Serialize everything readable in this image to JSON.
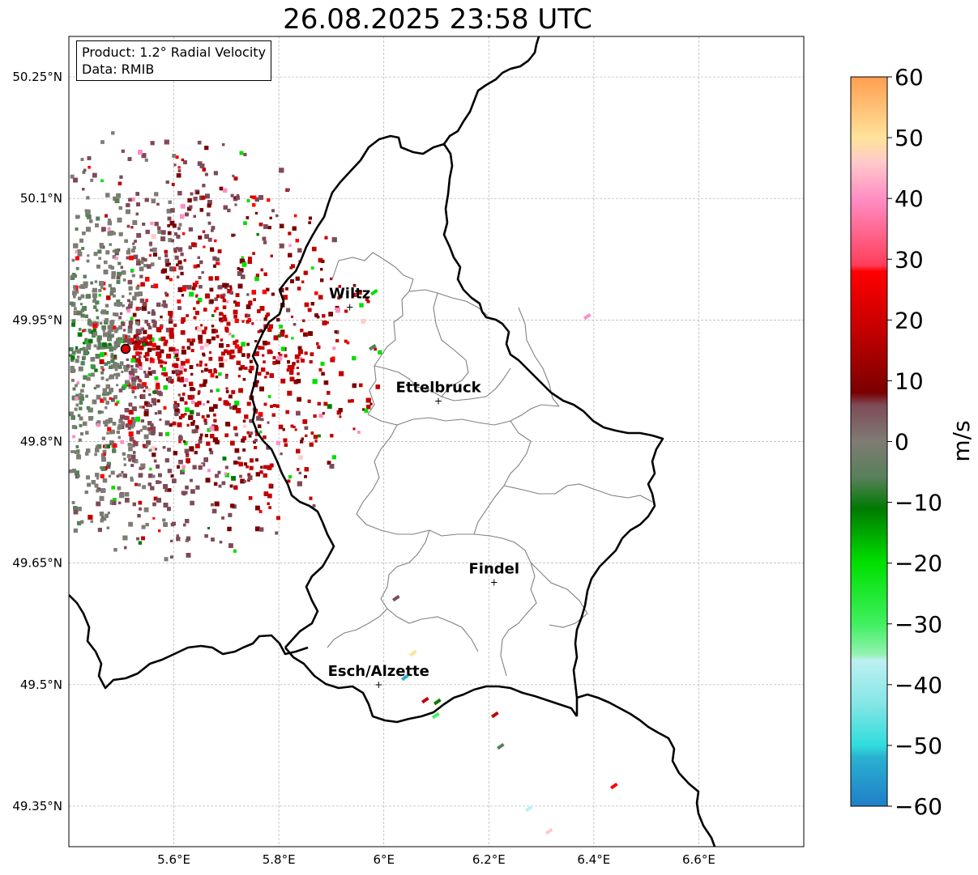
{
  "title": "26.08.2025 23:58 UTC",
  "info": {
    "product": "Product: 1.2° Radial Velocity",
    "data": "Data: RMIB"
  },
  "lat_ticks": [
    {
      "value": 50.25,
      "label": "50.25°N"
    },
    {
      "value": 50.1,
      "label": "50.1°N"
    },
    {
      "value": 49.95,
      "label": "49.95°N"
    },
    {
      "value": 49.8,
      "label": "49.8°N"
    },
    {
      "value": 49.65,
      "label": "49.65°N"
    },
    {
      "value": 49.5,
      "label": "49.5°N"
    },
    {
      "value": 49.35,
      "label": "49.35°N"
    }
  ],
  "lon_ticks": [
    {
      "value": 5.6,
      "label": "5.6°E"
    },
    {
      "value": 5.8,
      "label": "5.8°E"
    },
    {
      "value": 6.0,
      "label": "6°E"
    },
    {
      "value": 6.2,
      "label": "6.2°E"
    },
    {
      "value": 6.4,
      "label": "6.4°E"
    },
    {
      "value": 6.6,
      "label": "6.6°E"
    }
  ],
  "extent": {
    "lon_min": 5.4,
    "lon_max": 6.8,
    "lat_min": 49.3,
    "lat_max": 50.3
  },
  "cities": [
    {
      "name": "Wiltz",
      "lon": 5.935,
      "lat": 49.966
    },
    {
      "name": "Ettelbruck",
      "lon": 6.104,
      "lat": 49.85
    },
    {
      "name": "Findel",
      "lon": 6.21,
      "lat": 49.626
    },
    {
      "name": "Esch/Alzette",
      "lon": 5.99,
      "lat": 49.5
    }
  ],
  "radar_site": {
    "lon": 5.505,
    "lat": 49.914
  },
  "colorbar": {
    "unit": "m/s",
    "min": -60,
    "max": 60,
    "ticks": [
      60,
      50,
      40,
      30,
      20,
      10,
      0,
      -10,
      -20,
      -30,
      -40,
      -50,
      -60
    ],
    "tick_labels": [
      "60",
      "50",
      "40",
      "30",
      "20",
      "10",
      "0",
      "−10",
      "−20",
      "−30",
      "−40",
      "−50",
      "−60"
    ],
    "stops": [
      {
        "v": -60,
        "c": "#1f7fc8"
      },
      {
        "v": -52,
        "c": "#2ab0d0"
      },
      {
        "v": -50,
        "c": "#30dcdc"
      },
      {
        "v": -43,
        "c": "#86e6e6"
      },
      {
        "v": -36,
        "c": "#bdf0f2"
      },
      {
        "v": -35,
        "c": "#92f2b0"
      },
      {
        "v": -30,
        "c": "#40f060"
      },
      {
        "v": -20,
        "c": "#00e000"
      },
      {
        "v": -11,
        "c": "#007a00"
      },
      {
        "v": -6,
        "c": "#57805a"
      },
      {
        "v": 0,
        "c": "#7e7c74"
      },
      {
        "v": 6,
        "c": "#7e4b58"
      },
      {
        "v": 8,
        "c": "#7a0000"
      },
      {
        "v": 18,
        "c": "#c20000"
      },
      {
        "v": 28,
        "c": "#ff0000"
      },
      {
        "v": 29,
        "c": "#ff3e5a"
      },
      {
        "v": 40,
        "c": "#ff8ec4"
      },
      {
        "v": 46,
        "c": "#ffcaca"
      },
      {
        "v": 50,
        "c": "#ffe39a"
      },
      {
        "v": 60,
        "c": "#ff9e50"
      }
    ]
  },
  "colors": {
    "border": "#000000",
    "canton": "#808080",
    "grid": "#b0b0b0",
    "radar_site": "#e00000"
  }
}
